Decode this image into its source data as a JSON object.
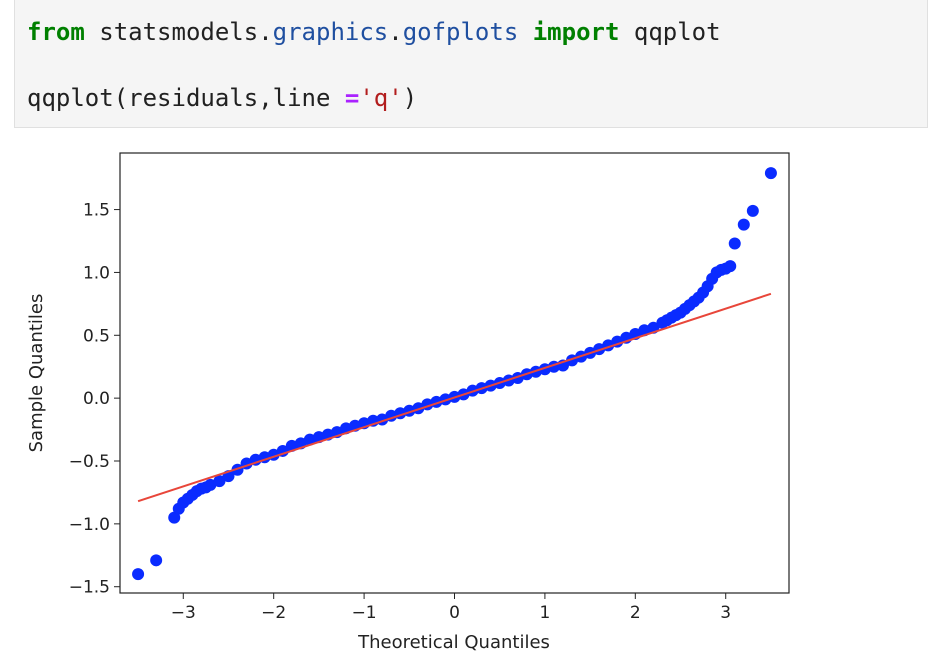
{
  "cell": {
    "line1": {
      "kw_from": "from",
      "module_head": " statsmodels.",
      "module_a": "graphics",
      "dot": ".",
      "module_b": "gofplots",
      "kw_import": "import",
      "name": " qqplot"
    },
    "line2": {
      "call": "qqplot(residuals,line ",
      "op": "=",
      "str": "'q'",
      "close": ")"
    }
  },
  "colors": {
    "points": "#0a2bff",
    "reference_line": "#e8463a",
    "keyword": "#008000",
    "module": "#1f4fa0",
    "string": "#b21d1d"
  },
  "chart_data": {
    "type": "scatter",
    "title": "",
    "xlabel": "Theoretical Quantiles",
    "ylabel": "Sample Quantiles",
    "xlim": [
      -3.7,
      3.7
    ],
    "ylim": [
      -1.55,
      1.95
    ],
    "xticks": [
      -3,
      -2,
      -1,
      0,
      1,
      2,
      3
    ],
    "xtick_labels": [
      "−3",
      "−2",
      "−1",
      "0",
      "1",
      "2",
      "3"
    ],
    "yticks": [
      -1.5,
      -1.0,
      -0.5,
      0.0,
      0.5,
      1.0,
      1.5
    ],
    "ytick_labels": [
      "−1.5",
      "−1.0",
      "−0.5",
      "0.0",
      "0.5",
      "1.0",
      "1.5"
    ],
    "grid": false,
    "reference_line": {
      "x": [
        -3.5,
        3.5
      ],
      "y": [
        -0.82,
        0.83
      ]
    },
    "series": [
      {
        "x": [
          -3.5,
          -3.3,
          -3.1,
          -3.05,
          -3.0,
          -2.95,
          -2.9,
          -2.85,
          -2.8,
          -2.75,
          -2.7,
          -2.6,
          -2.5,
          -2.4,
          -2.3,
          -2.2,
          -2.1,
          -2.0,
          -1.9,
          -1.8,
          -1.7,
          -1.6,
          -1.5,
          -1.4,
          -1.3,
          -1.2,
          -1.1,
          -1.0,
          -0.9,
          -0.8,
          -0.7,
          -0.6,
          -0.5,
          -0.4,
          -0.3,
          -0.2,
          -0.1,
          0.0,
          0.1,
          0.2,
          0.3,
          0.4,
          0.5,
          0.6,
          0.7,
          0.8,
          0.9,
          1.0,
          1.1,
          1.2,
          1.3,
          1.4,
          1.5,
          1.6,
          1.7,
          1.8,
          1.9,
          2.0,
          2.1,
          2.2,
          2.3,
          2.35,
          2.4,
          2.45,
          2.5,
          2.55,
          2.6,
          2.65,
          2.7,
          2.75,
          2.8,
          2.85,
          2.9,
          2.95,
          3.0,
          3.05,
          3.1,
          3.2,
          3.3,
          3.5
        ],
        "y": [
          -1.4,
          -1.29,
          -0.95,
          -0.88,
          -0.83,
          -0.8,
          -0.77,
          -0.74,
          -0.72,
          -0.71,
          -0.69,
          -0.66,
          -0.62,
          -0.57,
          -0.52,
          -0.49,
          -0.47,
          -0.45,
          -0.42,
          -0.38,
          -0.36,
          -0.33,
          -0.31,
          -0.29,
          -0.27,
          -0.24,
          -0.22,
          -0.2,
          -0.18,
          -0.17,
          -0.14,
          -0.12,
          -0.1,
          -0.08,
          -0.05,
          -0.03,
          -0.01,
          0.01,
          0.03,
          0.06,
          0.08,
          0.1,
          0.12,
          0.14,
          0.16,
          0.19,
          0.21,
          0.23,
          0.25,
          0.26,
          0.3,
          0.33,
          0.36,
          0.39,
          0.42,
          0.45,
          0.48,
          0.51,
          0.54,
          0.56,
          0.6,
          0.62,
          0.64,
          0.66,
          0.68,
          0.71,
          0.74,
          0.77,
          0.8,
          0.84,
          0.89,
          0.95,
          1.0,
          1.02,
          1.03,
          1.05,
          1.23,
          1.38,
          1.49,
          1.79
        ]
      }
    ]
  }
}
